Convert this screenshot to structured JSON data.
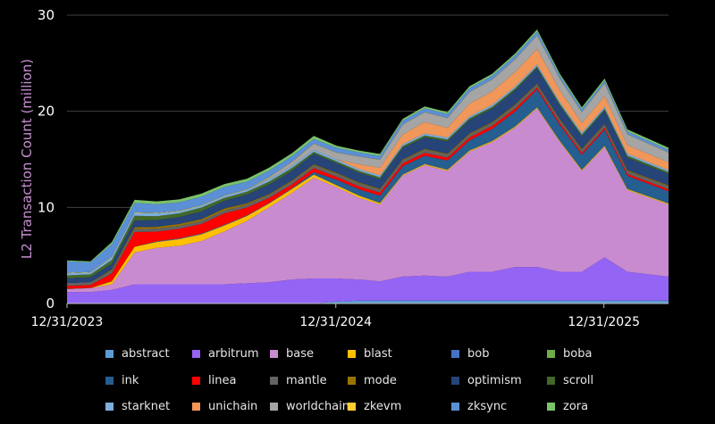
{
  "chart_data": {
    "type": "area",
    "stacked": true,
    "title": "",
    "xlabel": "",
    "ylabel": "L2 Transaction Count (million)",
    "ylim": [
      0,
      30
    ],
    "yticks": [
      "0",
      "10",
      "20",
      "30"
    ],
    "xlim": [
      "2023-12-31",
      "2026-03-29"
    ],
    "xticks": [
      {
        "label": "12/31/2023",
        "date": "2023-12-31"
      },
      {
        "label": "12/31/2024",
        "date": "2024-12-31"
      },
      {
        "label": "12/31/2025",
        "date": "2025-12-31"
      }
    ],
    "grid": "horizontal",
    "legend_position": "bottom",
    "x": [
      "2024-01-01",
      "2024-02-01",
      "2024-03-01",
      "2024-04-01",
      "2024-05-01",
      "2024-06-01",
      "2024-07-01",
      "2024-08-01",
      "2024-09-01",
      "2024-10-01",
      "2024-11-01",
      "2024-12-01",
      "2025-01-01",
      "2025-02-01",
      "2025-03-01",
      "2025-04-01",
      "2025-05-01",
      "2025-06-01",
      "2025-07-01",
      "2025-08-01",
      "2025-09-01",
      "2025-10-01",
      "2025-11-01",
      "2025-12-01",
      "2026-01-01",
      "2026-02-01",
      "2026-03-01"
    ],
    "series": [
      {
        "name": "abstract",
        "color": "#5b9bd5",
        "values": [
          0,
          0,
          0,
          0,
          0,
          0,
          0,
          0,
          0,
          0,
          0,
          0,
          0.2,
          0.3,
          0.3,
          0.3,
          0.3,
          0.3,
          0.3,
          0.3,
          0.3,
          0.3,
          0.3,
          0.3,
          0.3,
          0.3,
          0.3
        ]
      },
      {
        "name": "arbitrum",
        "color": "#9464f5",
        "values": [
          1.2,
          1.2,
          1.4,
          2.0,
          2.0,
          2.0,
          2.0,
          2.0,
          2.1,
          2.2,
          2.5,
          2.6,
          2.4,
          2.2,
          2.0,
          2.5,
          2.6,
          2.5,
          3.0,
          3.0,
          3.5,
          3.5,
          3.0,
          3.0,
          4.5,
          3.0,
          2.5
        ]
      },
      {
        "name": "base",
        "color": "#c98bcf",
        "values": [
          0.3,
          0.4,
          0.6,
          3.3,
          3.8,
          4.0,
          4.5,
          5.5,
          6.5,
          7.8,
          9.0,
          10.5,
          9.5,
          8.5,
          8.0,
          10.5,
          11.5,
          11.0,
          12.5,
          13.5,
          14.5,
          16.5,
          13.5,
          10.5,
          11.5,
          8.5,
          7.5
        ]
      },
      {
        "name": "blast",
        "color": "#ffc000",
        "values": [
          0,
          0,
          0.3,
          0.6,
          0.6,
          0.7,
          0.7,
          0.6,
          0.5,
          0.4,
          0.4,
          0.3,
          0.2,
          0.2,
          0.15,
          0.1,
          0.1,
          0.1,
          0.1,
          0.1,
          0.1,
          0.1,
          0.1,
          0.1,
          0.1,
          0.1,
          0.1
        ]
      },
      {
        "name": "bob",
        "color": "#4472c4",
        "values": [
          0,
          0,
          0,
          0,
          0.05,
          0.05,
          0.05,
          0.05,
          0.05,
          0.05,
          0.05,
          0.05,
          0.05,
          0.05,
          0.05,
          0.05,
          0.05,
          0.05,
          0.05,
          0.05,
          0.05,
          0.05,
          0.05,
          0.05,
          0.05,
          0.05,
          0.05
        ]
      },
      {
        "name": "boba",
        "color": "#70ad47",
        "values": [
          0.03,
          0.03,
          0.03,
          0.03,
          0.03,
          0.03,
          0.03,
          0.03,
          0.03,
          0.03,
          0.03,
          0.03,
          0.03,
          0.03,
          0.03,
          0.03,
          0.03,
          0.03,
          0.03,
          0.03,
          0.03,
          0.03,
          0.03,
          0.03,
          0.03,
          0.03,
          0.03
        ]
      },
      {
        "name": "ink",
        "color": "#255e91",
        "values": [
          0,
          0,
          0,
          0,
          0,
          0,
          0,
          0,
          0,
          0,
          0,
          0.2,
          0.5,
          0.6,
          0.7,
          0.8,
          0.8,
          0.9,
          1.0,
          1.2,
          1.5,
          1.8,
          1.6,
          1.5,
          1.6,
          1.3,
          1.2
        ]
      },
      {
        "name": "linea",
        "color": "#ff0000",
        "values": [
          0.3,
          0.3,
          0.8,
          1.5,
          1.0,
          1.0,
          1.0,
          1.2,
          0.8,
          0.5,
          0.4,
          0.4,
          0.3,
          0.3,
          0.3,
          0.3,
          0.3,
          0.3,
          0.3,
          0.3,
          0.3,
          0.2,
          0.2,
          0.2,
          0.2,
          0.2,
          0.2
        ]
      },
      {
        "name": "mantle",
        "color": "#636363",
        "values": [
          0.3,
          0.3,
          0.3,
          0.3,
          0.3,
          0.3,
          0.3,
          0.3,
          0.3,
          0.3,
          0.3,
          0.3,
          0.3,
          0.3,
          0.3,
          0.3,
          0.3,
          0.3,
          0.3,
          0.3,
          0.3,
          0.3,
          0.3,
          0.3,
          0.3,
          0.3,
          0.3
        ]
      },
      {
        "name": "mode",
        "color": "#997300",
        "values": [
          0,
          0,
          0.1,
          0.2,
          0.2,
          0.2,
          0.2,
          0.2,
          0.15,
          0.1,
          0.1,
          0.1,
          0.1,
          0.1,
          0.1,
          0.1,
          0.1,
          0.1,
          0.1,
          0.1,
          0.1,
          0.1,
          0.1,
          0.1,
          0.1,
          0.1,
          0.1
        ]
      },
      {
        "name": "optimism",
        "color": "#264478",
        "values": [
          0.5,
          0.5,
          0.6,
          0.7,
          0.7,
          0.7,
          0.8,
          0.8,
          0.9,
          1.0,
          1.0,
          1.1,
          1.0,
          1.0,
          1.0,
          1.2,
          1.2,
          1.3,
          1.4,
          1.4,
          1.5,
          1.6,
          1.4,
          1.3,
          1.4,
          1.3,
          1.2
        ]
      },
      {
        "name": "scroll",
        "color": "#43682b",
        "values": [
          0.3,
          0.3,
          0.4,
          0.5,
          0.4,
          0.4,
          0.4,
          0.3,
          0.3,
          0.3,
          0.3,
          0.2,
          0.2,
          0.2,
          0.2,
          0.2,
          0.2,
          0.2,
          0.2,
          0.2,
          0.2,
          0.2,
          0.2,
          0.2,
          0.2,
          0.2,
          0.2
        ]
      },
      {
        "name": "starknet",
        "color": "#7cafdd",
        "values": [
          0.2,
          0.2,
          0.3,
          0.3,
          0.3,
          0.2,
          0.2,
          0.2,
          0.2,
          0.2,
          0.2,
          0.2,
          0.2,
          0.2,
          0.2,
          0.2,
          0.2,
          0.2,
          0.2,
          0.2,
          0.2,
          0.2,
          0.2,
          0.2,
          0.2,
          0.2,
          0.2
        ]
      },
      {
        "name": "unichain",
        "color": "#f1975a",
        "values": [
          0,
          0,
          0,
          0,
          0,
          0,
          0,
          0,
          0,
          0,
          0,
          0,
          0,
          0.5,
          0.8,
          1.0,
          1.2,
          1.0,
          1.3,
          1.4,
          1.5,
          1.6,
          1.2,
          1.0,
          1.1,
          0.9,
          0.8
        ]
      },
      {
        "name": "worldchain",
        "color": "#a5a5a5",
        "values": [
          0,
          0,
          0,
          0,
          0,
          0,
          0,
          0,
          0,
          0.2,
          0.4,
          0.6,
          0.7,
          0.8,
          0.8,
          1.0,
          1.0,
          1.0,
          1.2,
          1.2,
          1.3,
          1.4,
          1.2,
          1.1,
          1.3,
          1.1,
          1.0
        ]
      },
      {
        "name": "zkevm",
        "color": "#ffcd33",
        "values": [
          0.05,
          0.05,
          0.05,
          0.05,
          0.05,
          0.05,
          0.05,
          0.05,
          0.05,
          0.05,
          0.05,
          0.05,
          0.03,
          0.03,
          0.03,
          0.03,
          0.03,
          0.03,
          0.03,
          0.03,
          0.03,
          0.03,
          0.03,
          0.03,
          0.03,
          0.03,
          0.03
        ]
      },
      {
        "name": "zksync",
        "color": "#5b8fd6",
        "values": [
          1.2,
          1.0,
          1.3,
          1.0,
          0.9,
          0.9,
          0.9,
          0.9,
          0.8,
          0.7,
          0.6,
          0.5,
          0.5,
          0.4,
          0.4,
          0.4,
          0.4,
          0.4,
          0.4,
          0.4,
          0.4,
          0.4,
          0.3,
          0.3,
          0.3,
          0.3,
          0.3
        ]
      },
      {
        "name": "zora",
        "color": "#7ac36a",
        "values": [
          0.1,
          0.1,
          0.2,
          0.3,
          0.3,
          0.3,
          0.3,
          0.3,
          0.3,
          0.3,
          0.3,
          0.3,
          0.2,
          0.2,
          0.2,
          0.2,
          0.2,
          0.2,
          0.2,
          0.2,
          0.2,
          0.2,
          0.2,
          0.2,
          0.2,
          0.2,
          0.2
        ]
      }
    ]
  }
}
